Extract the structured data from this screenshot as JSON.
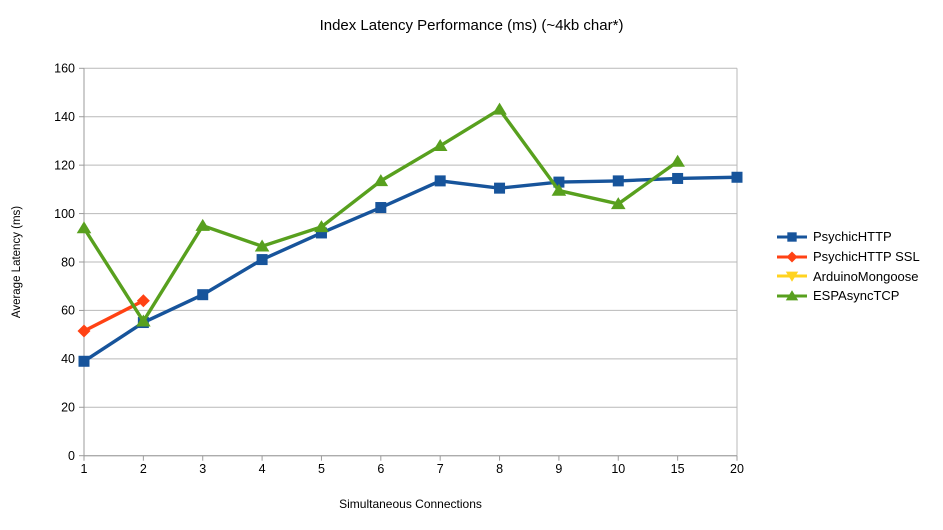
{
  "chart_data": {
    "type": "line",
    "title": "Index Latency Performance (ms) (~4kb char*)",
    "xlabel": "Simultaneous Connections",
    "ylabel": "Average Latency (ms)",
    "categories": [
      "1",
      "2",
      "3",
      "4",
      "5",
      "6",
      "7",
      "8",
      "9",
      "10",
      "15",
      "20"
    ],
    "ylim": [
      0,
      160
    ],
    "ytick_step": 20,
    "grid": "horizontal",
    "legend_position": "right",
    "background_color": "#ffffff",
    "grid_color": "#b9b9b9",
    "axis_color": "#9b9b9b",
    "tick_label_color": "#000000",
    "series": [
      {
        "name": "PsychicHTTP",
        "color": "#17549B",
        "marker": "square",
        "values": [
          39,
          55,
          66.5,
          81,
          92,
          102.5,
          113.5,
          110.5,
          113,
          113.5,
          114.5,
          115
        ]
      },
      {
        "name": "PsychicHTTP SSL",
        "color": "#FF4214",
        "marker": "diamond",
        "values": [
          51.5,
          64,
          null,
          null,
          null,
          null,
          null,
          null,
          null,
          null,
          null,
          null
        ]
      },
      {
        "name": "ArduinoMongoose",
        "color": "#FFD320",
        "marker": "triangle-down",
        "values": [
          null,
          null,
          null,
          null,
          null,
          null,
          null,
          null,
          null,
          null,
          null,
          null
        ]
      },
      {
        "name": "ESPAsyncTCP",
        "color": "#58A01E",
        "marker": "triangle-up",
        "values": [
          94,
          55.5,
          95,
          86.5,
          94.5,
          113.5,
          128,
          143,
          109.5,
          104,
          121.5,
          null
        ]
      }
    ]
  }
}
